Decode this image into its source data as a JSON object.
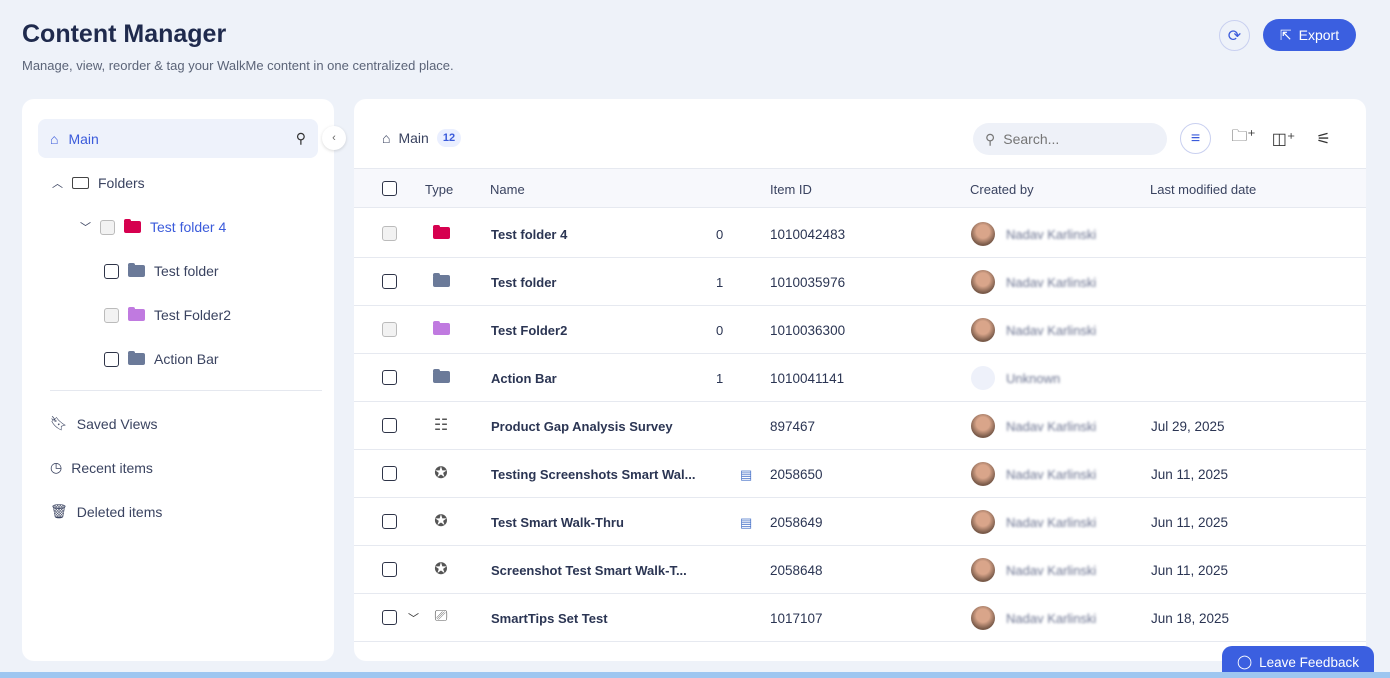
{
  "header": {
    "title": "Content Manager",
    "subtitle": "Manage, view, reorder & tag your WalkMe content in one centralized place.",
    "export_label": "Export"
  },
  "sidebar": {
    "main_label": "Main",
    "folders_label": "Folders",
    "folders": [
      {
        "label": "Test folder 4",
        "color": "#d6004f",
        "active": true
      },
      {
        "label": "Test folder",
        "color": "#6b7a99"
      },
      {
        "label": "Test Folder2",
        "color": "#c07ae0"
      },
      {
        "label": "Action Bar",
        "color": "#6b7a99"
      }
    ],
    "saved_views": "Saved Views",
    "recent_items": "Recent items",
    "deleted_items": "Deleted items"
  },
  "main": {
    "breadcrumb": "Main",
    "count": "12",
    "search_placeholder": "Search...",
    "columns": {
      "type": "Type",
      "name": "Name",
      "item_id": "Item ID",
      "created_by": "Created by",
      "last_modified": "Last modified date"
    },
    "rows": [
      {
        "type": "folder",
        "color": "#d6004f",
        "name": "Test folder 4",
        "count": "0",
        "id": "1010042483",
        "creator": "Nadav Karlinski",
        "date": ""
      },
      {
        "type": "folder",
        "color": "#6b7a99",
        "name": "Test folder",
        "count": "1",
        "id": "1010035976",
        "creator": "Nadav Karlinski",
        "date": ""
      },
      {
        "type": "folder",
        "color": "#c07ae0",
        "name": "Test Folder2",
        "count": "0",
        "id": "1010036300",
        "creator": "Nadav Karlinski",
        "date": ""
      },
      {
        "type": "folder",
        "color": "#6b7a99",
        "name": "Action Bar",
        "count": "1",
        "id": "1010041141",
        "creator": "Unknown",
        "date": ""
      },
      {
        "type": "survey",
        "name": "Product Gap Analysis Survey",
        "count": "",
        "id": "897467",
        "creator": "Nadav Karlinski",
        "date": "Jul 29, 2025"
      },
      {
        "type": "smart-walkthru",
        "name": "Testing Screenshots Smart Wal...",
        "count": "",
        "id": "2058650",
        "creator": "Nadav Karlinski",
        "date": "Jun 11, 2025",
        "doc": true
      },
      {
        "type": "smart-walkthru",
        "name": "Test Smart Walk-Thru",
        "count": "",
        "id": "2058649",
        "creator": "Nadav Karlinski",
        "date": "Jun 11, 2025",
        "doc": true
      },
      {
        "type": "smart-walkthru",
        "name": "Screenshot Test Smart Walk-T...",
        "count": "",
        "id": "2058648",
        "creator": "Nadav Karlinski",
        "date": "Jun 11, 2025"
      },
      {
        "type": "smarttips",
        "name": "SmartTips Set Test",
        "count": "",
        "id": "1017107",
        "creator": "Nadav Karlinski",
        "date": "Jun 18, 2025",
        "expandable": true
      }
    ]
  },
  "feedback_label": "Leave Feedback",
  "colors": {
    "accent": "#3b5fe0",
    "background": "#eef2f9"
  }
}
